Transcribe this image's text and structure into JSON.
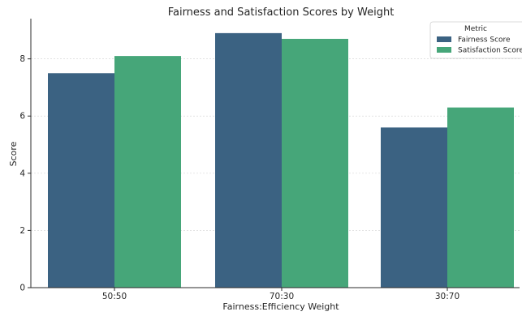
{
  "colors": {
    "fairness": "#3b6282",
    "satisfaction": "#46a679",
    "grid": "#d9d9d9",
    "axis": "#2b2b2b"
  },
  "chart_data": {
    "type": "bar",
    "title": "Fairness and Satisfaction Scores by Weight",
    "xlabel": "Fairness:Efficiency Weight",
    "ylabel": "Score",
    "categories": [
      "50:50",
      "70:30",
      "30:70"
    ],
    "series": [
      {
        "name": "Fairness Score",
        "values": [
          7.5,
          8.9,
          5.6
        ]
      },
      {
        "name": "Satisfaction Score",
        "values": [
          8.1,
          8.7,
          6.3
        ]
      }
    ],
    "ylim": [
      0,
      9.35
    ],
    "yticks": [
      0,
      2,
      4,
      6,
      8
    ],
    "grid": true,
    "legend": {
      "title": "Metric",
      "placement": "top-right"
    }
  }
}
